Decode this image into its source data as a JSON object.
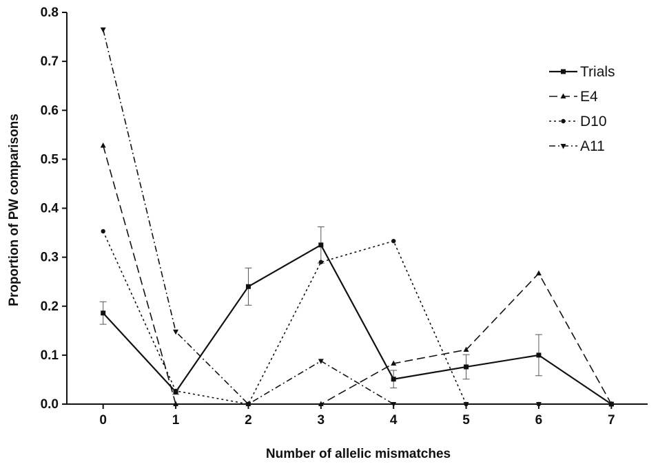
{
  "chart_data": {
    "type": "line",
    "title": "",
    "xlabel": "Number of allelic mismatches",
    "ylabel": "Proportion of PW comparisons",
    "x": [
      0,
      1,
      2,
      3,
      4,
      5,
      6,
      7
    ],
    "x_ticks": [
      "0",
      "1",
      "2",
      "3",
      "4",
      "5",
      "6",
      "7"
    ],
    "y_ticks": [
      "0.0",
      "0.1",
      "0.2",
      "0.3",
      "0.4",
      "0.5",
      "0.6",
      "0.7",
      "0.8"
    ],
    "xlim": [
      -0.5,
      7.5
    ],
    "ylim": [
      0,
      0.8
    ],
    "grid": false,
    "legend_position": "top-right",
    "series": [
      {
        "name": "Trials",
        "style": "solid",
        "marker": "square",
        "color": "#111111",
        "values": [
          0.186,
          0.025,
          0.24,
          0.325,
          0.051,
          0.076,
          0.1,
          0.0
        ],
        "error": [
          0.023,
          0.005,
          0.038,
          0.037,
          0.018,
          0.025,
          0.042,
          0.0
        ]
      },
      {
        "name": "E4",
        "style": "dashed",
        "marker": "triangle-up",
        "color": "#111111",
        "values": [
          0.528,
          0.0,
          0.0,
          0.0,
          0.083,
          0.111,
          0.267,
          0.0
        ]
      },
      {
        "name": "D10",
        "style": "dotted",
        "marker": "circle",
        "color": "#111111",
        "values": [
          0.353,
          0.027,
          0.0,
          0.29,
          0.333,
          0.0,
          0.0,
          0.0
        ]
      },
      {
        "name": "A11",
        "style": "dashdot",
        "marker": "triangle-down",
        "color": "#111111",
        "values": [
          0.765,
          0.148,
          0.0,
          0.088,
          0.0,
          0.0,
          0.0,
          0.0
        ]
      }
    ]
  }
}
